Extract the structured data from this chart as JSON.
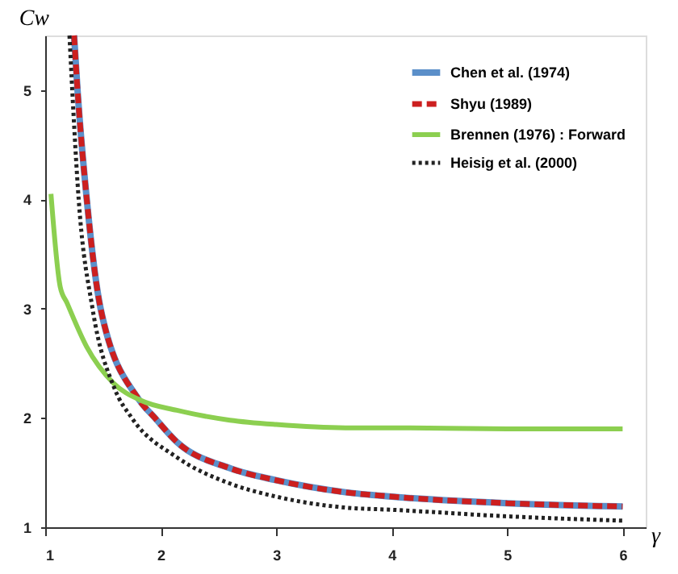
{
  "chart_data": {
    "type": "line",
    "xlabel": "γ",
    "ylabel": "Cw",
    "xlim": [
      1,
      6.2
    ],
    "ylim": [
      1,
      5.5
    ],
    "xticks": [
      1,
      2,
      3,
      4,
      5,
      6
    ],
    "yticks": [
      1,
      2,
      3,
      4,
      5
    ],
    "grid": false,
    "legend": "top right",
    "marker": "none",
    "series": [
      {
        "name": "Chen et al.  (1974)",
        "color": "#5b8fc9",
        "line_style": "solid",
        "x": [
          1.25,
          1.28,
          1.36,
          1.48,
          1.81,
          1.95,
          2.14,
          2.6,
          3,
          3.6,
          4,
          5,
          6
        ],
        "values": [
          5.5,
          5,
          4,
          3,
          2.17,
          2,
          1.78,
          1.54,
          1.43,
          1.32,
          1.28,
          1.22,
          1.19
        ]
      },
      {
        "name": "Shyu (1989)",
        "color": "#cc1f1f",
        "line_style": "dashed",
        "x": [
          1.25,
          1.28,
          1.36,
          1.48,
          1.81,
          1.95,
          2.14,
          2.6,
          3,
          3.6,
          4,
          5,
          6
        ],
        "values": [
          5.5,
          5,
          4,
          3,
          2.17,
          2,
          1.78,
          1.54,
          1.43,
          1.32,
          1.28,
          1.22,
          1.19
        ]
      },
      {
        "name": "Brennen (1976) : Forward",
        "color": "#8ccf50",
        "line_style": "solid",
        "x": [
          1.05,
          1.13,
          1.19,
          1.36,
          1.59,
          1.83,
          2.14,
          2.6,
          3,
          3.6,
          4,
          5,
          6
        ],
        "values": [
          4.05,
          3.2,
          3.05,
          2.65,
          2.32,
          2.16,
          2.07,
          1.98,
          1.94,
          1.91,
          1.91,
          1.9,
          1.9
        ]
      },
      {
        "name": "Heisig et al. (2000)",
        "color": "#222222",
        "line_style": "dotted",
        "x": [
          1.21,
          1.29,
          1.41,
          1.6,
          1.75,
          2.14,
          2.6,
          3,
          3.6,
          4,
          5,
          6
        ],
        "values": [
          5.5,
          4,
          3,
          2.27,
          2,
          1.64,
          1.4,
          1.28,
          1.18,
          1.16,
          1.1,
          1.06
        ]
      }
    ]
  }
}
